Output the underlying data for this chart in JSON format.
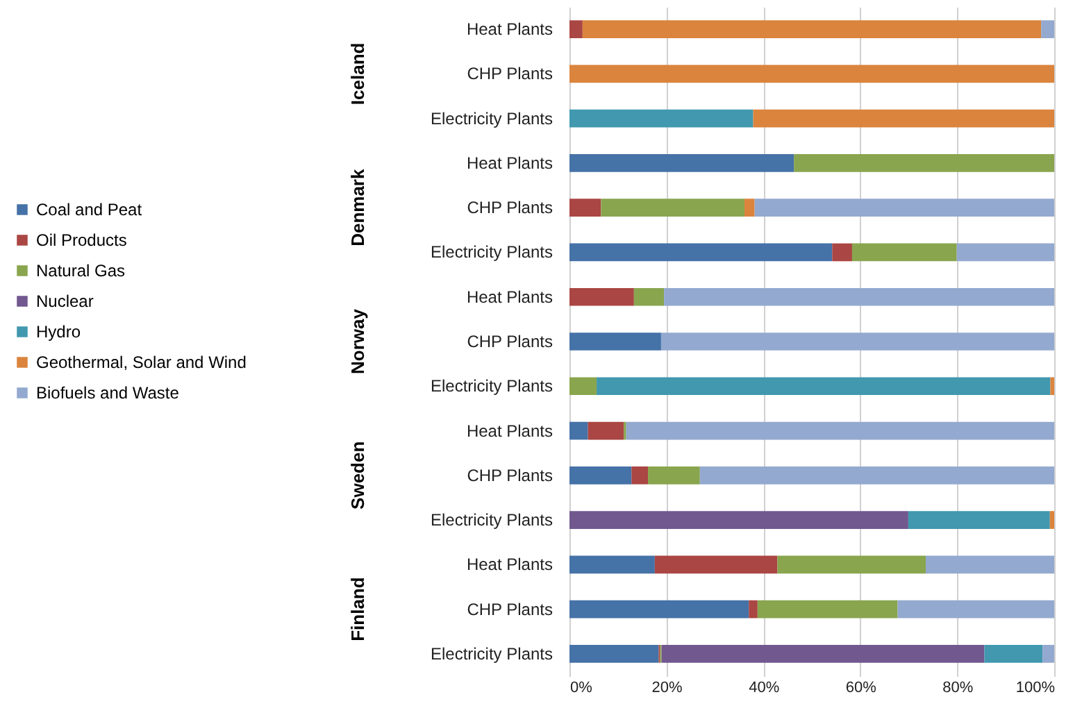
{
  "chart_data": {
    "type": "bar",
    "orientation": "horizontal",
    "stacked": true,
    "categories": [
      "Heat Plants",
      "CHP Plants",
      "Electricity Plants",
      "Heat Plants",
      "CHP Plants",
      "Electricity Plants",
      "Heat Plants",
      "CHP Plants",
      "Electricity Plants",
      "Heat Plants",
      "CHP Plants",
      "Electricity Plants",
      "Heat Plants",
      "CHP Plants",
      "Electricity Plants"
    ],
    "annotations": [
      "Iceland",
      "Denmark",
      "Norway",
      "Sweden",
      "Finland"
    ],
    "series": [
      {
        "name": "Coal and Peat",
        "color": "#4572a7",
        "values": [
          0,
          0,
          0,
          46.3,
          0,
          54.2,
          0,
          18.9,
          0,
          3.8,
          12.8,
          0,
          17.6,
          37.0,
          18.4
        ]
      },
      {
        "name": "Oil Products",
        "color": "#aa4643",
        "values": [
          2.7,
          0,
          0,
          0,
          6.5,
          4.1,
          13.3,
          0,
          0,
          7.4,
          3.4,
          0,
          25.3,
          1.8,
          0.3
        ]
      },
      {
        "name": "Natural Gas",
        "color": "#89a54e",
        "values": [
          0,
          0,
          0,
          53.7,
          29.6,
          21.6,
          6.2,
          0,
          5.6,
          0.5,
          10.7,
          0,
          30.6,
          28.9,
          0.3
        ]
      },
      {
        "name": "Nuclear",
        "color": "#71588f",
        "values": [
          0,
          0,
          0,
          0,
          0,
          0,
          0,
          0,
          0,
          0,
          0,
          69.9,
          0,
          0,
          66.6
        ]
      },
      {
        "name": "Hydro",
        "color": "#4198af",
        "values": [
          0,
          0,
          37.9,
          0,
          0,
          0,
          0,
          0,
          93.6,
          0,
          0,
          29.2,
          0,
          0,
          12.0
        ]
      },
      {
        "name": "Geothermal, Solar and Wind",
        "color": "#db843d",
        "values": [
          94.6,
          100,
          62.1,
          0,
          2.1,
          0,
          0,
          0,
          0.8,
          0,
          0,
          0.9,
          0,
          0,
          0
        ]
      },
      {
        "name": "Biofuels and Waste",
        "color": "#93a9cf",
        "values": [
          2.7,
          0,
          0,
          0,
          61.8,
          20.1,
          80.5,
          81.1,
          0,
          88.3,
          73.1,
          0,
          26.5,
          32.3,
          2.4
        ]
      }
    ],
    "xlim": [
      0,
      100
    ],
    "xticks": [
      {
        "value": 0,
        "label": "0%"
      },
      {
        "value": 20,
        "label": "20%"
      },
      {
        "value": 40,
        "label": "40%"
      },
      {
        "value": 60,
        "label": "60%"
      },
      {
        "value": 80,
        "label": "80%"
      },
      {
        "value": 100,
        "label": "100%"
      }
    ],
    "grid": "x",
    "legend": "left"
  }
}
